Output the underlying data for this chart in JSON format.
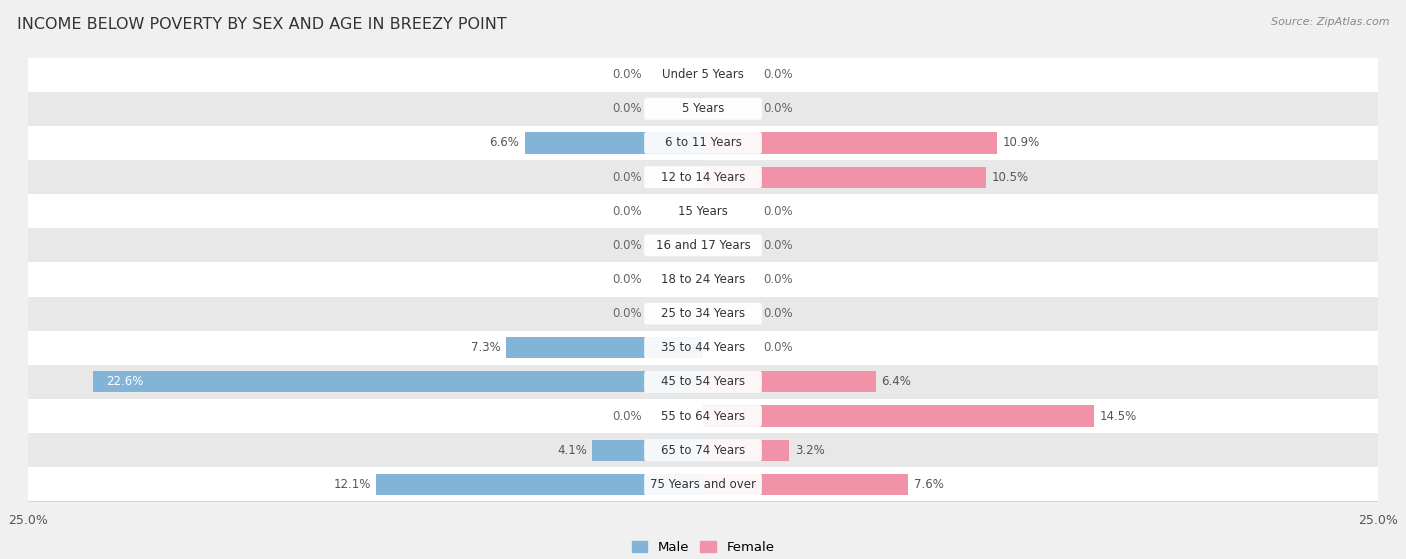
{
  "title": "INCOME BELOW POVERTY BY SEX AND AGE IN BREEZY POINT",
  "source": "Source: ZipAtlas.com",
  "categories": [
    "Under 5 Years",
    "5 Years",
    "6 to 11 Years",
    "12 to 14 Years",
    "15 Years",
    "16 and 17 Years",
    "18 to 24 Years",
    "25 to 34 Years",
    "35 to 44 Years",
    "45 to 54 Years",
    "55 to 64 Years",
    "65 to 74 Years",
    "75 Years and over"
  ],
  "male": [
    0.0,
    0.0,
    6.6,
    0.0,
    0.0,
    0.0,
    0.0,
    0.0,
    7.3,
    22.6,
    0.0,
    4.1,
    12.1
  ],
  "female": [
    0.0,
    0.0,
    10.9,
    10.5,
    0.0,
    0.0,
    0.0,
    0.0,
    0.0,
    6.4,
    14.5,
    3.2,
    7.6
  ],
  "male_color": "#82b4d8",
  "female_color": "#f093a8",
  "xlim": 25.0,
  "bg_color": "#f0f0f0",
  "row_bg_light": "#ffffff",
  "row_bg_dark": "#e8e8e8",
  "title_fontsize": 11.5,
  "label_fontsize": 8.5,
  "value_fontsize": 8.5,
  "tick_fontsize": 9,
  "source_fontsize": 8
}
